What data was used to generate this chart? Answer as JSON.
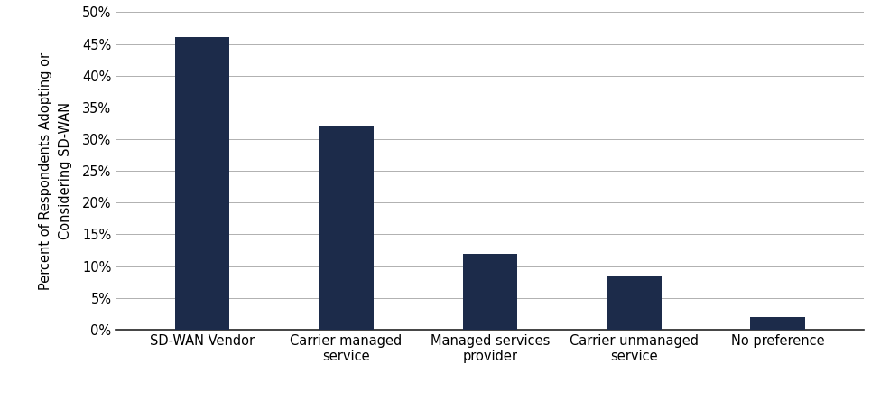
{
  "categories": [
    "SD-WAN Vendor",
    "Carrier managed\nservice",
    "Managed services\nprovider",
    "Carrier unmanaged\nservice",
    "No preference"
  ],
  "values": [
    46,
    32,
    12,
    8.5,
    2
  ],
  "bar_color": "#1c2b4a",
  "ylabel": "Percent of Respondents Adopting or\nConsidering SD-WAN",
  "ylim": [
    0,
    50
  ],
  "yticks": [
    0,
    5,
    10,
    15,
    20,
    25,
    30,
    35,
    40,
    45,
    50
  ],
  "ytick_labels": [
    "0%",
    "5%",
    "10%",
    "15%",
    "20%",
    "25%",
    "30%",
    "35%",
    "40%",
    "45%",
    "50%"
  ],
  "background_color": "#ffffff",
  "grid_color": "#b0b0b0",
  "tick_label_fontsize": 10.5,
  "ylabel_fontsize": 10.5,
  "bar_width": 0.38
}
